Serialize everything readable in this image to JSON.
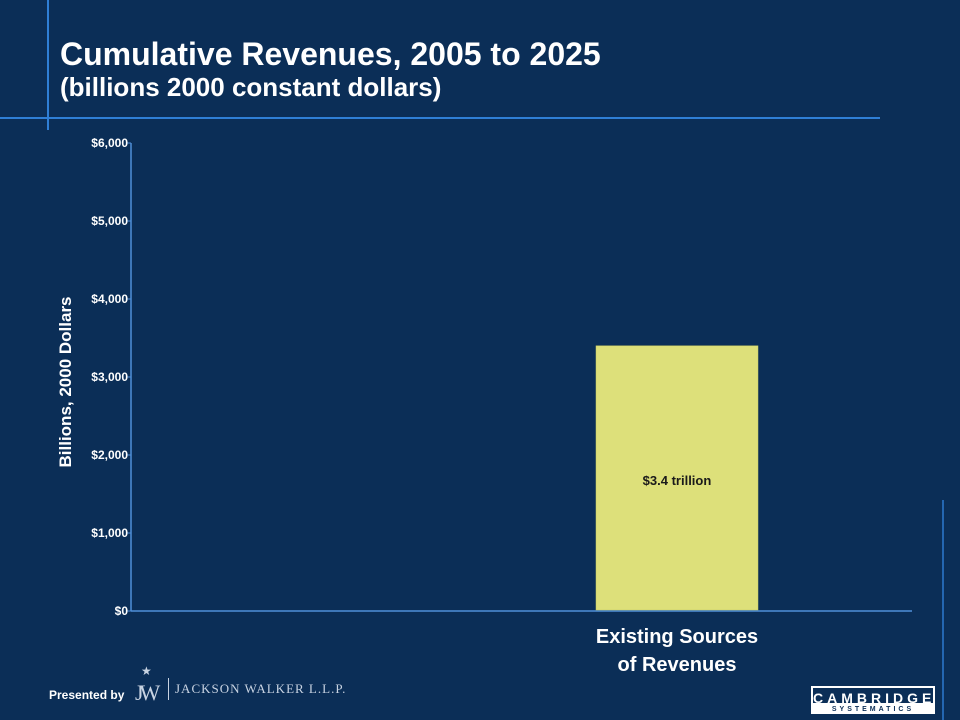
{
  "slide": {
    "title_line1": "Cumulative Revenues, 2005 to 2025",
    "title_line2": "(billions 2000 constant dollars)"
  },
  "chart_data": {
    "type": "bar",
    "ylabel": "Billions, 2000 Dollars",
    "ylim": [
      0,
      6000
    ],
    "yticks": [
      "$0",
      "$1,000",
      "$2,000",
      "$3,000",
      "$4,000",
      "$5,000",
      "$6,000"
    ],
    "categories": [
      "Existing Sources of Revenues"
    ],
    "category_lines": [
      [
        "Existing Sources",
        "of Revenues"
      ]
    ],
    "values": [
      3400
    ],
    "data_labels": [
      "$3.4 trillion"
    ],
    "bar_color": "#dde07a",
    "grid": false
  },
  "footer": {
    "presented_by": "Presented by",
    "jw_logo_text": "JACKSON WALKER L.L.P.",
    "jw_monogram": "JW",
    "cs_logo_top": "CAMBRIDGE",
    "cs_logo_bottom": "SYSTEMATICS"
  },
  "colors": {
    "background": "#0b2e57",
    "accent_rule": "#2f7fd6",
    "axis": "#4f8fd8"
  }
}
